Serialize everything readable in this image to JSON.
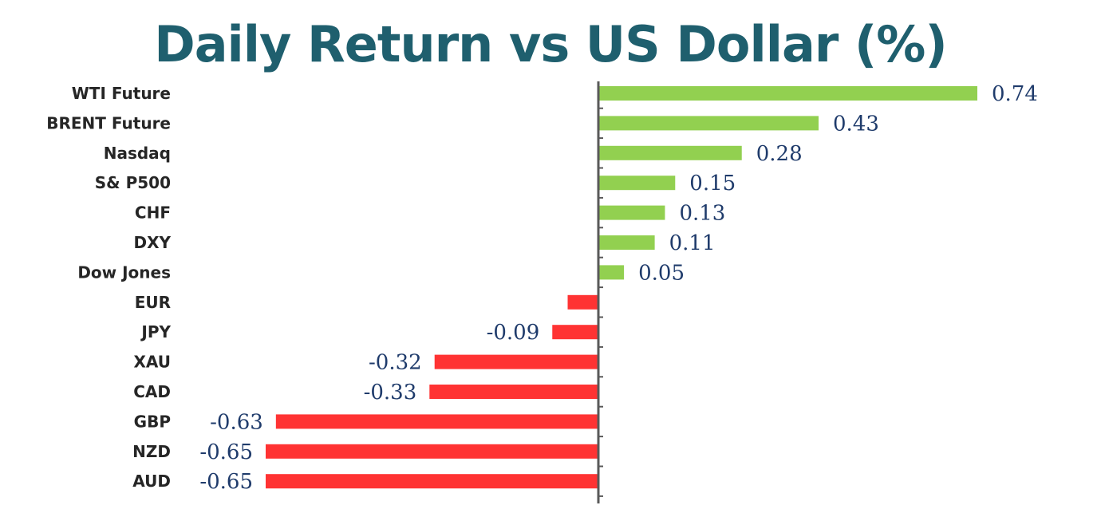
{
  "chart_data": {
    "type": "bar",
    "orientation": "horizontal",
    "title": "Daily Return vs US Dollar (%)",
    "categories": [
      "WTI Future",
      "BRENT Future",
      "Nasdaq",
      "S& P500",
      "CHF",
      "DXY",
      "Dow Jones",
      "EUR",
      "JPY",
      "XAU",
      "CAD",
      "GBP",
      "NZD",
      "AUD"
    ],
    "values": [
      0.74,
      0.43,
      0.28,
      0.15,
      0.13,
      0.11,
      0.05,
      -0.06,
      -0.09,
      -0.32,
      -0.33,
      -0.63,
      -0.65,
      -0.65
    ],
    "data_labels": [
      "0.74",
      "0.43",
      "0.28",
      "0.15",
      "0.13",
      "0.11",
      "0.05",
      "",
      "-0.09",
      "-0.32",
      "-0.33",
      "-0.63",
      "-0.65",
      "-0.65"
    ],
    "xlim": [
      -0.65,
      0.74
    ],
    "grid": false,
    "colors": {
      "positive": "#92d050",
      "negative": "#ff3333",
      "title": "#1f5f6e",
      "axis": "#595959",
      "value_label": "#1f3b6b",
      "category_label": "#262626"
    }
  }
}
